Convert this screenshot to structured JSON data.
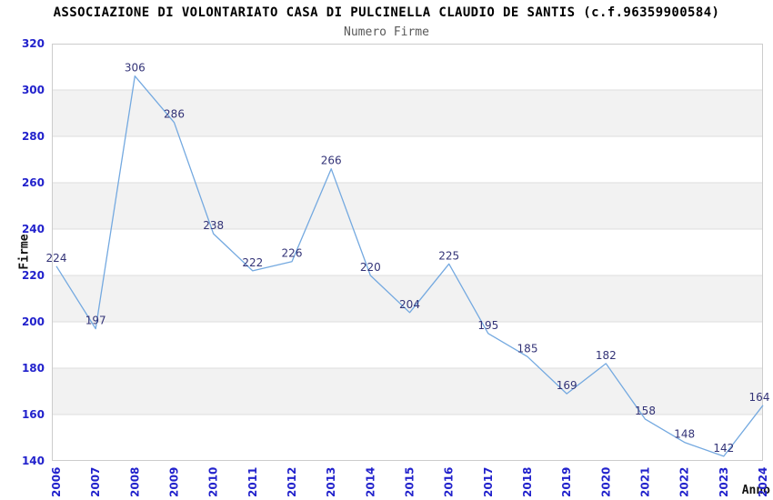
{
  "header": {
    "title": "ASSOCIAZIONE DI VOLONTARIATO CASA DI PULCINELLA CLAUDIO DE SANTIS (c.f.96359900584)",
    "subtitle": "Numero Firme"
  },
  "chart_data": {
    "type": "line",
    "title": "Numero Firme",
    "xlabel": "Anno",
    "ylabel": "Firme",
    "x": [
      2006,
      2007,
      2008,
      2009,
      2010,
      2011,
      2012,
      2013,
      2014,
      2015,
      2016,
      2017,
      2018,
      2019,
      2020,
      2021,
      2022,
      2023,
      2024
    ],
    "series": [
      {
        "name": "Numero Firme",
        "values": [
          224,
          197,
          306,
          286,
          238,
          222,
          226,
          266,
          220,
          204,
          225,
          195,
          185,
          169,
          182,
          158,
          148,
          142,
          164
        ]
      }
    ],
    "ylim": [
      140,
      320
    ],
    "ytick_step": 20,
    "grid": true,
    "legend": "none",
    "data_labels_visible": true,
    "colors": {
      "line": "#74A9E0",
      "tick_label": "#2222CC",
      "data_label": "#333377",
      "band_fill": "#F2F2F2",
      "gridline": "#DDDDDD",
      "plot_border": "#CCCCCC",
      "plot_background": "#FFFFFF"
    }
  }
}
